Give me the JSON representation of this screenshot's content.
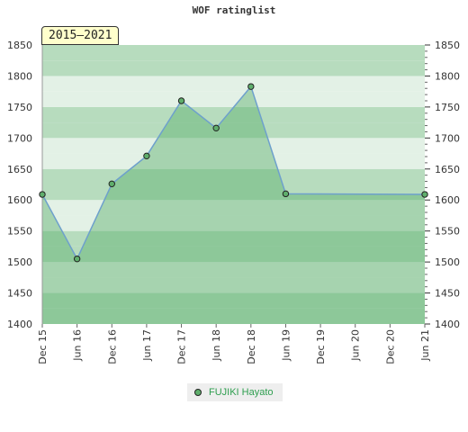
{
  "title": "WOF ratinglist",
  "period": "2015–2021",
  "colors": {
    "line": "#6ea0cc",
    "area": "#5cb06c",
    "marker": "#5fae6c",
    "band_dark": "#b7dcbe",
    "band_light": "#e3f1e6",
    "legend_text": "#2e9e4f"
  },
  "chart_data": {
    "type": "area",
    "title": "WOF ratinglist",
    "xlabel": "",
    "ylabel": "",
    "ylim": [
      1400,
      1850
    ],
    "yticks": [
      "1850",
      "1800",
      "1750",
      "1700",
      "1650",
      "1600",
      "1550",
      "1500",
      "1450",
      "1400"
    ],
    "xticks": [
      "Dec 15",
      "Jun 16",
      "Dec 16",
      "Jun 17",
      "Dec 17",
      "Jun 18",
      "Dec 18",
      "Jun 19",
      "Dec 19",
      "Jun 20",
      "Dec 20",
      "Jun 21"
    ],
    "grid": true,
    "legend_position": "bottom",
    "series": [
      {
        "name": "FUJIKI Hayato",
        "points": [
          {
            "x": "Dec 15",
            "y": 1609
          },
          {
            "x": "Jun 16",
            "y": 1505
          },
          {
            "x": "Dec 16",
            "y": 1626
          },
          {
            "x": "Jun 17",
            "y": 1671
          },
          {
            "x": "Dec 17",
            "y": 1760
          },
          {
            "x": "Jun 18",
            "y": 1716
          },
          {
            "x": "Dec 18",
            "y": 1783
          },
          {
            "x": "Jun 19",
            "y": 1610
          },
          {
            "x": "Jun 21",
            "y": 1609
          }
        ]
      }
    ]
  }
}
